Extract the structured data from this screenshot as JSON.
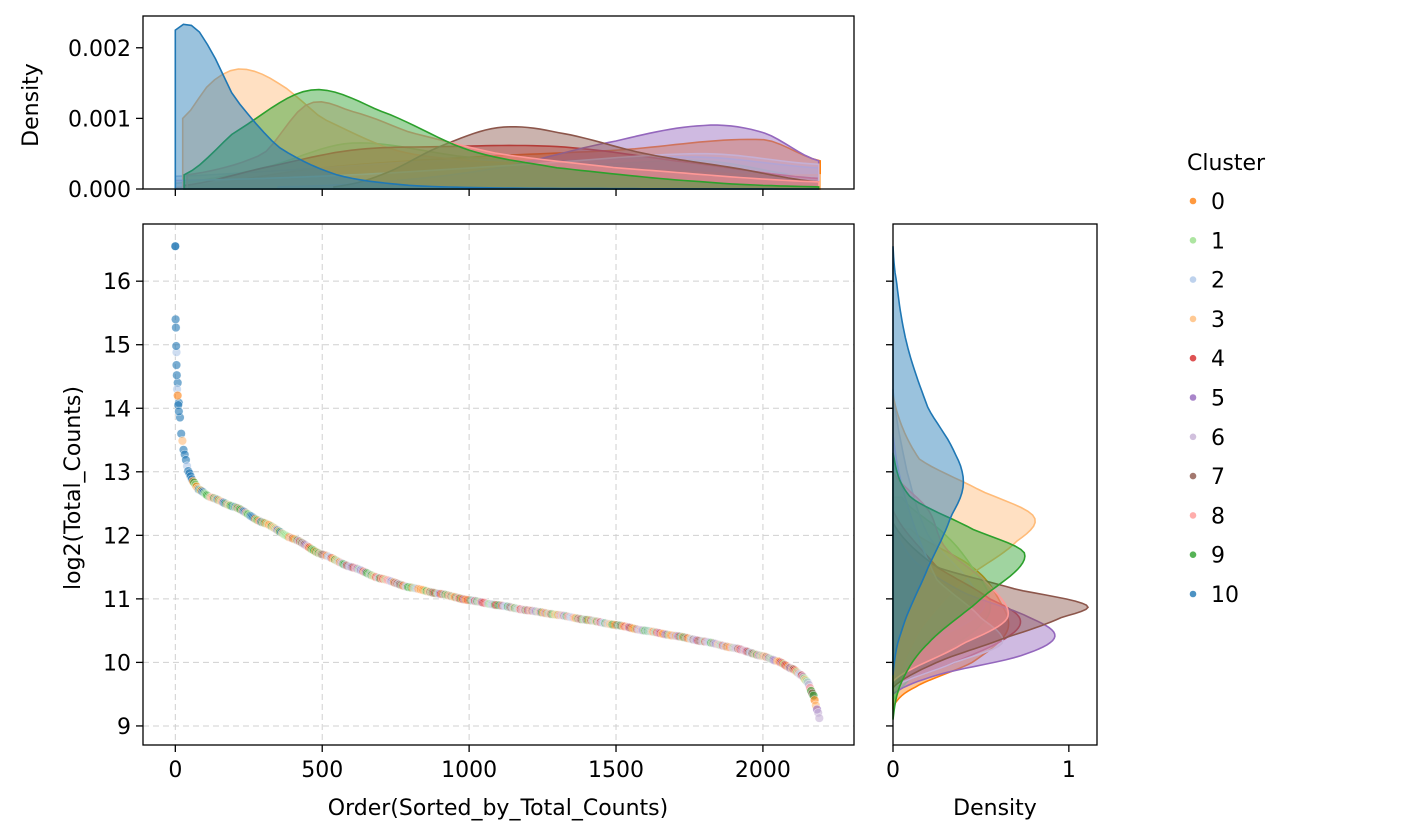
{
  "chart_data": {
    "type": "scatter",
    "title": "",
    "xlabel": "Order(Sorted_by_Total_Counts)",
    "ylabel": "log2(Total_Counts)",
    "xlim": [
      -110,
      2310
    ],
    "ylim": [
      8.7,
      16.9
    ],
    "x_ticks": [
      0,
      500,
      1000,
      1500,
      2000
    ],
    "y_ticks": [
      9,
      10,
      11,
      12,
      13,
      14,
      15,
      16
    ],
    "x_tick_labels": [
      "0",
      "500",
      "1000",
      "1500",
      "2000"
    ],
    "y_tick_labels": [
      "9",
      "10",
      "11",
      "12",
      "13",
      "14",
      "15",
      "16"
    ],
    "grid": true,
    "n_points": 2195,
    "curve_knots": [
      [
        0,
        16.55
      ],
      [
        1,
        15.4
      ],
      [
        3,
        15.0
      ],
      [
        6,
        14.6
      ],
      [
        10,
        14.2
      ],
      [
        15,
        13.9
      ],
      [
        20,
        13.6
      ],
      [
        30,
        13.3
      ],
      [
        45,
        13.0
      ],
      [
        60,
        12.85
      ],
      [
        80,
        12.72
      ],
      [
        120,
        12.6
      ],
      [
        200,
        12.45
      ],
      [
        300,
        12.2
      ],
      [
        400,
        11.95
      ],
      [
        500,
        11.7
      ],
      [
        600,
        11.5
      ],
      [
        700,
        11.32
      ],
      [
        800,
        11.18
      ],
      [
        900,
        11.08
      ],
      [
        1000,
        10.98
      ],
      [
        1100,
        10.9
      ],
      [
        1200,
        10.82
      ],
      [
        1300,
        10.75
      ],
      [
        1400,
        10.67
      ],
      [
        1500,
        10.59
      ],
      [
        1600,
        10.5
      ],
      [
        1700,
        10.42
      ],
      [
        1800,
        10.33
      ],
      [
        1900,
        10.23
      ],
      [
        2000,
        10.1
      ],
      [
        2050,
        10.02
      ],
      [
        2100,
        9.9
      ],
      [
        2130,
        9.8
      ],
      [
        2150,
        9.7
      ],
      [
        2170,
        9.5
      ],
      [
        2185,
        9.25
      ],
      [
        2195,
        9.08
      ]
    ],
    "series_palette": {
      "0": "#ff7f0e",
      "1": "#98df8a",
      "2": "#aec7e8",
      "3": "#ffbb78",
      "4": "#d62728",
      "5": "#9467bd",
      "6": "#c5b0d5",
      "7": "#8c564b",
      "8": "#ff9896",
      "9": "#2ca02c",
      "10": "#1f77b4"
    },
    "top_density": {
      "ylabel": "Density",
      "ylim": [
        0,
        0.00245
      ],
      "y_ticks": [
        0,
        0.001,
        0.002
      ],
      "y_tick_labels": [
        "0.000",
        "0.001",
        "0.002"
      ],
      "series": [
        {
          "name": "0",
          "range": [
            30,
            2195
          ],
          "points": [
            [
              0,
              2e-05
            ],
            [
              500,
              0.0003
            ],
            [
              1000,
              0.00045
            ],
            [
              1500,
              0.00055
            ],
            [
              2000,
              0.0007
            ],
            [
              2195,
              0.0004
            ]
          ]
        },
        {
          "name": "1",
          "range": [
            30,
            2190
          ],
          "points": [
            [
              0,
              8e-05
            ],
            [
              300,
              0.0003
            ],
            [
              600,
              0.00065
            ],
            [
              1000,
              0.00045
            ],
            [
              1400,
              0.00035
            ],
            [
              1800,
              0.0004
            ],
            [
              2190,
              0.00015
            ]
          ]
        },
        {
          "name": "2",
          "range": [
            0,
            2190
          ],
          "points": [
            [
              0,
              0.00018
            ],
            [
              500,
              0.0003
            ],
            [
              900,
              0.0004
            ],
            [
              1300,
              0.0004
            ],
            [
              1800,
              0.00045
            ],
            [
              2190,
              0.0003
            ]
          ]
        },
        {
          "name": "3",
          "range": [
            25,
            2195
          ],
          "points": [
            [
              25,
              0.001
            ],
            [
              120,
              0.0015
            ],
            [
              220,
              0.0017
            ],
            [
              350,
              0.0015
            ],
            [
              500,
              0.001
            ],
            [
              750,
              0.00055
            ],
            [
              1000,
              0.0004
            ],
            [
              1500,
              0.0003
            ],
            [
              2000,
              0.0002
            ],
            [
              2195,
              0.0002
            ]
          ]
        },
        {
          "name": "4",
          "range": [
            30,
            2190
          ],
          "points": [
            [
              30,
              5e-05
            ],
            [
              300,
              0.0003
            ],
            [
              600,
              0.00055
            ],
            [
              900,
              0.0006
            ],
            [
              1300,
              0.0006
            ],
            [
              1700,
              0.0004
            ],
            [
              2190,
              0.00015
            ]
          ]
        },
        {
          "name": "5",
          "range": [
            350,
            2190
          ],
          "points": [
            [
              350,
              3e-05
            ],
            [
              700,
              0.0001
            ],
            [
              1100,
              0.0003
            ],
            [
              1500,
              0.00068
            ],
            [
              1800,
              0.0009
            ],
            [
              2000,
              0.0008
            ],
            [
              2190,
              0.0004
            ]
          ]
        },
        {
          "name": "6",
          "range": [
            0,
            2190
          ],
          "points": [
            [
              0,
              0.00012
            ],
            [
              600,
              0.0002
            ],
            [
              1200,
              0.00035
            ],
            [
              1800,
              0.0005
            ],
            [
              2190,
              0.00035
            ]
          ]
        },
        {
          "name": "7",
          "range": [
            540,
            2190
          ],
          "points": [
            [
              540,
              3e-05
            ],
            [
              700,
              0.0002
            ],
            [
              900,
              0.0006
            ],
            [
              1100,
              0.00087
            ],
            [
              1300,
              0.0008
            ],
            [
              1600,
              0.0005
            ],
            [
              1900,
              0.0003
            ],
            [
              2190,
              0.0001
            ]
          ]
        },
        {
          "name": "8",
          "range": [
            40,
            2190
          ],
          "points": [
            [
              40,
              0.0002
            ],
            [
              300,
              0.0005
            ],
            [
              450,
              0.0012
            ],
            [
              600,
              0.0011
            ],
            [
              800,
              0.0008
            ],
            [
              1100,
              0.0005
            ],
            [
              1500,
              0.0003
            ],
            [
              2190,
              0.0001
            ]
          ]
        },
        {
          "name": "9",
          "range": [
            30,
            2190
          ],
          "points": [
            [
              30,
              0.0002
            ],
            [
              200,
              0.0008
            ],
            [
              460,
              0.0014
            ],
            [
              700,
              0.0011
            ],
            [
              1000,
              0.00055
            ],
            [
              1300,
              0.0003
            ],
            [
              1800,
              0.0001
            ],
            [
              2190,
              3e-05
            ]
          ]
        },
        {
          "name": "10",
          "range": [
            0,
            2190
          ],
          "points": [
            [
              0,
              0.00225
            ],
            [
              40,
              0.00234
            ],
            [
              100,
              0.0021
            ],
            [
              200,
              0.0013
            ],
            [
              350,
              0.0006
            ],
            [
              550,
              0.0002
            ],
            [
              800,
              5e-05
            ],
            [
              1200,
              1e-05
            ],
            [
              2190,
              0.0
            ]
          ]
        }
      ]
    },
    "right_density": {
      "xlabel": "Density",
      "xlim": [
        0,
        1.16
      ],
      "x_ticks": [
        0,
        1
      ],
      "x_tick_labels": [
        "0",
        "1"
      ],
      "series": [
        {
          "name": "0",
          "range": [
            9.3,
            12.1
          ],
          "points": [
            [
              9.3,
              0.0
            ],
            [
              9.6,
              0.12
            ],
            [
              10.0,
              0.45
            ],
            [
              10.5,
              0.65
            ],
            [
              11.0,
              0.6
            ],
            [
              11.5,
              0.45
            ],
            [
              12.1,
              0.1
            ]
          ]
        },
        {
          "name": "1",
          "range": [
            9.4,
            12.6
          ],
          "points": [
            [
              9.4,
              0.0
            ],
            [
              10.0,
              0.2
            ],
            [
              10.6,
              0.5
            ],
            [
              11.0,
              0.55
            ],
            [
              11.5,
              0.45
            ],
            [
              12.0,
              0.3
            ],
            [
              12.6,
              0.05
            ]
          ]
        },
        {
          "name": "2",
          "range": [
            9.5,
            14.3
          ],
          "points": [
            [
              9.5,
              0.0
            ],
            [
              10.2,
              0.15
            ],
            [
              10.8,
              0.5
            ],
            [
              11.2,
              0.45
            ],
            [
              12.0,
              0.2
            ],
            [
              13.0,
              0.08
            ],
            [
              14.3,
              0.0
            ]
          ]
        },
        {
          "name": "3",
          "range": [
            9.5,
            14.2
          ],
          "points": [
            [
              9.5,
              0.0
            ],
            [
              10.5,
              0.15
            ],
            [
              11.3,
              0.4
            ],
            [
              11.9,
              0.7
            ],
            [
              12.3,
              0.8
            ],
            [
              12.7,
              0.5
            ],
            [
              13.2,
              0.15
            ],
            [
              14.2,
              0.0
            ]
          ]
        },
        {
          "name": "4",
          "range": [
            9.6,
            12.4
          ],
          "points": [
            [
              9.6,
              0.0
            ],
            [
              10.0,
              0.35
            ],
            [
              10.4,
              0.65
            ],
            [
              10.7,
              0.72
            ],
            [
              11.0,
              0.55
            ],
            [
              11.5,
              0.25
            ],
            [
              12.4,
              0.0
            ]
          ]
        },
        {
          "name": "5",
          "range": [
            9.5,
            12.2
          ],
          "points": [
            [
              9.5,
              0.0
            ],
            [
              9.8,
              0.25
            ],
            [
              10.1,
              0.72
            ],
            [
              10.4,
              0.92
            ],
            [
              10.7,
              0.78
            ],
            [
              11.1,
              0.4
            ],
            [
              11.6,
              0.12
            ],
            [
              12.2,
              0.0
            ]
          ]
        },
        {
          "name": "6",
          "range": [
            9.6,
            13.6
          ],
          "points": [
            [
              9.6,
              0.0
            ],
            [
              10.0,
              0.35
            ],
            [
              10.3,
              0.62
            ],
            [
              10.7,
              0.5
            ],
            [
              11.3,
              0.25
            ],
            [
              12.5,
              0.08
            ],
            [
              13.6,
              0.0
            ]
          ]
        },
        {
          "name": "7",
          "range": [
            9.6,
            12.2
          ],
          "points": [
            [
              9.6,
              0.0
            ],
            [
              10.0,
              0.25
            ],
            [
              10.4,
              0.65
            ],
            [
              10.7,
              0.95
            ],
            [
              10.9,
              1.1
            ],
            [
              11.15,
              0.7
            ],
            [
              11.5,
              0.25
            ],
            [
              12.2,
              0.0
            ]
          ]
        },
        {
          "name": "8",
          "range": [
            9.7,
            13.0
          ],
          "points": [
            [
              9.7,
              0.0
            ],
            [
              10.3,
              0.4
            ],
            [
              10.7,
              0.65
            ],
            [
              11.2,
              0.55
            ],
            [
              11.8,
              0.3
            ],
            [
              12.4,
              0.2
            ],
            [
              13.0,
              0.0
            ]
          ]
        },
        {
          "name": "9",
          "range": [
            9.1,
            13.3
          ],
          "points": [
            [
              9.1,
              0.0
            ],
            [
              9.7,
              0.05
            ],
            [
              10.3,
              0.2
            ],
            [
              11.0,
              0.5
            ],
            [
              11.7,
              0.75
            ],
            [
              12.1,
              0.45
            ],
            [
              12.6,
              0.1
            ],
            [
              13.3,
              0.0
            ]
          ]
        },
        {
          "name": "10",
          "range": [
            9.8,
            16.55
          ],
          "points": [
            [
              9.8,
              0.0
            ],
            [
              10.5,
              0.05
            ],
            [
              11.5,
              0.2
            ],
            [
              12.3,
              0.33
            ],
            [
              12.8,
              0.4
            ],
            [
              13.3,
              0.35
            ],
            [
              14.0,
              0.2
            ],
            [
              15.0,
              0.08
            ],
            [
              16.0,
              0.02
            ],
            [
              16.55,
              0.0
            ]
          ]
        }
      ]
    },
    "legend": {
      "title": "Cluster",
      "entries": [
        "0",
        "1",
        "2",
        "3",
        "4",
        "5",
        "6",
        "7",
        "8",
        "9",
        "10"
      ],
      "placement": "right"
    }
  }
}
